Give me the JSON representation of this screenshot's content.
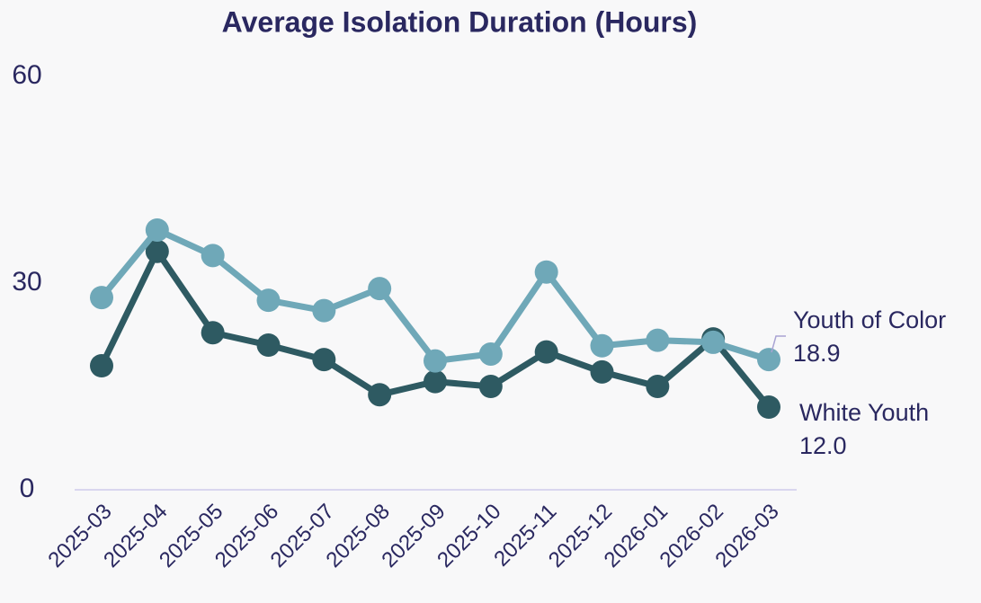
{
  "chart_data": {
    "type": "line",
    "title": "Average Isolation Duration (Hours)",
    "categories": [
      "2025-03",
      "2025-04",
      "2025-05",
      "2025-06",
      "2025-07",
      "2025-08",
      "2025-09",
      "2025-10",
      "2025-11",
      "2025-12",
      "2026-01",
      "2026-02",
      "2026-03"
    ],
    "series": [
      {
        "name": "Youth of Color",
        "color": "#6fa8b8",
        "values": [
          27.9,
          37.7,
          34.0,
          27.5,
          26.0,
          29.2,
          18.7,
          19.7,
          31.6,
          20.9,
          21.7,
          21.4,
          18.9
        ]
      },
      {
        "name": "White Youth",
        "color": "#2e5a62",
        "values": [
          18.0,
          34.6,
          22.8,
          21.0,
          18.9,
          13.8,
          15.7,
          15.0,
          20.0,
          17.1,
          15.0,
          21.9,
          12.0
        ],
        "value_labels": [
          null,
          null,
          null,
          null,
          null,
          null,
          null,
          null,
          null,
          null,
          null,
          null,
          "12.0"
        ]
      }
    ],
    "ylim": [
      0,
      60
    ],
    "yticks": [
      0,
      30,
      60
    ],
    "grid": false
  }
}
